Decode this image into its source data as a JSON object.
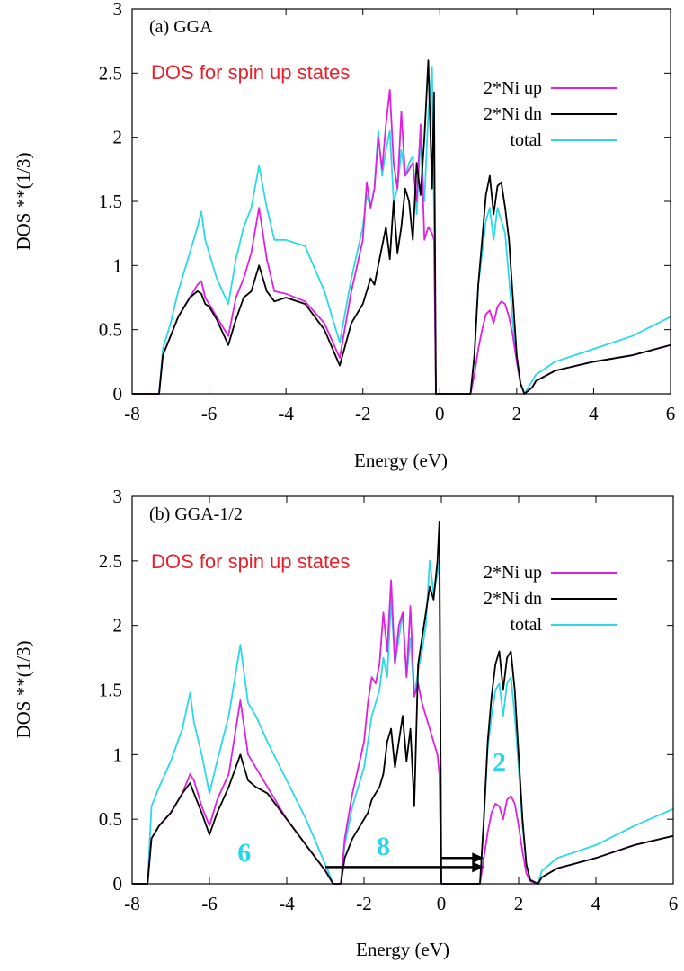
{
  "colors": {
    "ni_up": "#e020e0",
    "ni_dn": "#000000",
    "total": "#2ad8e8",
    "note": "#e8202a",
    "annotation": "#27d6e8"
  },
  "chart_data": [
    {
      "type": "line",
      "panel_label": "(a) GGA",
      "note": "DOS for spin up states",
      "xlabel": "Energy (eV)",
      "ylabel": "DOS **(1/3)",
      "xlim": [
        -8,
        6
      ],
      "ylim": [
        0,
        3
      ],
      "xticks": [
        "-8",
        "-6",
        "-4",
        "-2",
        "0",
        "2",
        "4",
        "6"
      ],
      "yticks": [
        "0",
        "0.5",
        "1",
        "1.5",
        "2",
        "2.5",
        "3"
      ],
      "legend_position": "top-right",
      "legend": [
        "2*Ni up",
        "2*Ni dn",
        "total"
      ],
      "annotations": [],
      "series": [
        {
          "name": "total",
          "x": [
            -8,
            -7.3,
            -7.2,
            -7.0,
            -6.8,
            -6.5,
            -6.3,
            -6.2,
            -6.1,
            -6.0,
            -5.8,
            -5.5,
            -5.3,
            -5.1,
            -4.9,
            -4.7,
            -4.5,
            -4.3,
            -4.0,
            -3.5,
            -3.0,
            -2.6,
            -2.3,
            -2.0,
            -1.9,
            -1.8,
            -1.7,
            -1.6,
            -1.5,
            -1.4,
            -1.3,
            -1.2,
            -1.1,
            -1.0,
            -0.9,
            -0.8,
            -0.7,
            -0.6,
            -0.5,
            -0.4,
            -0.3,
            -0.2,
            -0.15,
            -0.1,
            0,
            0.8,
            0.9,
            1.0,
            1.1,
            1.2,
            1.3,
            1.4,
            1.5,
            1.6,
            1.7,
            1.8,
            1.9,
            2.0,
            2.1,
            2.2,
            2.4,
            2.5,
            3,
            4,
            5,
            6
          ],
          "y": [
            0,
            0,
            0.35,
            0.55,
            0.8,
            1.1,
            1.3,
            1.42,
            1.2,
            1.1,
            0.9,
            0.7,
            1.05,
            1.3,
            1.45,
            1.78,
            1.45,
            1.2,
            1.2,
            1.15,
            0.8,
            0.4,
            0.9,
            1.3,
            1.55,
            1.45,
            1.6,
            2.05,
            1.7,
            1.9,
            2.05,
            1.5,
            1.6,
            1.9,
            1.7,
            1.8,
            1.85,
            1.4,
            2.0,
            1.5,
            2.2,
            2.55,
            1.4,
            0,
            0,
            0,
            0.3,
            0.85,
            1.1,
            1.35,
            1.45,
            1.2,
            1.45,
            1.35,
            1.25,
            0.9,
            0.55,
            0.25,
            0.08,
            0,
            0.1,
            0.15,
            0.25,
            0.35,
            0.45,
            0.6
          ]
        },
        {
          "name": "2*Ni up",
          "x": [
            -8,
            -7.3,
            -7.2,
            -7.0,
            -6.8,
            -6.5,
            -6.3,
            -6.2,
            -6.1,
            -6.0,
            -5.8,
            -5.5,
            -5.3,
            -5.1,
            -4.9,
            -4.7,
            -4.5,
            -4.3,
            -4.0,
            -3.5,
            -3.0,
            -2.6,
            -2.3,
            -2.0,
            -1.9,
            -1.8,
            -1.7,
            -1.6,
            -1.5,
            -1.4,
            -1.3,
            -1.2,
            -1.1,
            -1.0,
            -0.9,
            -0.8,
            -0.7,
            -0.6,
            -0.5,
            -0.4,
            -0.3,
            -0.2,
            -0.15,
            -0.1,
            0,
            0.8,
            0.9,
            1.0,
            1.1,
            1.2,
            1.3,
            1.4,
            1.5,
            1.6,
            1.7,
            1.8,
            1.9,
            2.0,
            2.1,
            2.2,
            2.4,
            2.5,
            3,
            4,
            5,
            6
          ],
          "y": [
            0,
            0,
            0.3,
            0.45,
            0.6,
            0.75,
            0.85,
            0.88,
            0.75,
            0.7,
            0.6,
            0.45,
            0.75,
            0.9,
            1.1,
            1.45,
            1.05,
            0.8,
            0.78,
            0.72,
            0.55,
            0.28,
            0.8,
            1.2,
            1.65,
            1.45,
            1.6,
            2.0,
            1.75,
            2.1,
            2.37,
            1.8,
            1.6,
            2.2,
            1.7,
            1.75,
            1.8,
            1.5,
            2.1,
            1.2,
            1.3,
            1.25,
            1.2,
            0,
            0,
            0,
            0.15,
            0.35,
            0.5,
            0.62,
            0.65,
            0.55,
            0.68,
            0.72,
            0.7,
            0.6,
            0.45,
            0.25,
            0.08,
            0,
            0.05,
            0.1,
            0.18,
            0.25,
            0.3,
            0.38
          ]
        },
        {
          "name": "2*Ni dn",
          "x": [
            -8,
            -7.3,
            -7.2,
            -7.0,
            -6.8,
            -6.5,
            -6.3,
            -6.2,
            -6.1,
            -6.0,
            -5.8,
            -5.5,
            -5.3,
            -5.1,
            -4.9,
            -4.7,
            -4.5,
            -4.3,
            -4.0,
            -3.5,
            -3.0,
            -2.6,
            -2.3,
            -2.0,
            -1.9,
            -1.8,
            -1.7,
            -1.6,
            -1.5,
            -1.4,
            -1.3,
            -1.2,
            -1.1,
            -1.0,
            -0.9,
            -0.8,
            -0.7,
            -0.6,
            -0.5,
            -0.4,
            -0.3,
            -0.2,
            -0.15,
            -0.1,
            0,
            0.8,
            0.9,
            1.0,
            1.1,
            1.2,
            1.3,
            1.4,
            1.5,
            1.6,
            1.7,
            1.8,
            1.9,
            2.0,
            2.1,
            2.2,
            2.4,
            2.5,
            3,
            4,
            5,
            6
          ],
          "y": [
            0,
            0,
            0.3,
            0.45,
            0.6,
            0.75,
            0.8,
            0.78,
            0.7,
            0.68,
            0.58,
            0.38,
            0.58,
            0.75,
            0.8,
            1.0,
            0.8,
            0.72,
            0.75,
            0.7,
            0.5,
            0.22,
            0.55,
            0.7,
            0.8,
            0.9,
            0.85,
            1.0,
            1.15,
            1.3,
            1.05,
            1.5,
            1.1,
            1.3,
            1.6,
            1.5,
            1.2,
            1.8,
            1.55,
            2.0,
            2.6,
            1.6,
            2.35,
            0,
            0,
            0,
            0.3,
            0.85,
            1.2,
            1.55,
            1.7,
            1.4,
            1.62,
            1.65,
            1.45,
            1.2,
            0.75,
            0.3,
            0.08,
            0,
            0.05,
            0.1,
            0.18,
            0.25,
            0.3,
            0.38
          ]
        }
      ]
    },
    {
      "type": "line",
      "panel_label": "(b) GGA-1/2",
      "note": "DOS for spin up states",
      "xlabel": "Energy (eV)",
      "ylabel": "DOS **(1/3)",
      "xlim": [
        -8,
        6
      ],
      "ylim": [
        0,
        3
      ],
      "xticks": [
        "-8",
        "-6",
        "-4",
        "-2",
        "0",
        "2",
        "4",
        "6"
      ],
      "yticks": [
        "0",
        "0.5",
        "1",
        "1.5",
        "2",
        "2.5",
        "3"
      ],
      "legend_position": "top-right",
      "legend": [
        "2*Ni up",
        "2*Ni dn",
        "total"
      ],
      "annotations": [
        {
          "text": "6",
          "x": -5.1,
          "y": 0.25
        },
        {
          "text": "8",
          "x": -1.5,
          "y": 0.3
        },
        {
          "text": "2",
          "x": 1.5,
          "y": 0.95
        }
      ],
      "arrows": [
        {
          "x_from": -3.0,
          "x_to": 1.1,
          "y": 0.13
        },
        {
          "x_from": 0.0,
          "x_to": 1.1,
          "y": 0.2
        }
      ],
      "series": [
        {
          "name": "total",
          "x": [
            -8,
            -7.6,
            -7.5,
            -7.3,
            -7.0,
            -6.7,
            -6.5,
            -6.4,
            -6.2,
            -6.0,
            -5.8,
            -5.5,
            -5.2,
            -5.0,
            -4.8,
            -4.5,
            -4.0,
            -3.5,
            -3.0,
            -2.8,
            -2.6,
            -2.5,
            -2.3,
            -2.0,
            -1.9,
            -1.8,
            -1.7,
            -1.6,
            -1.5,
            -1.4,
            -1.3,
            -1.2,
            -1.1,
            -1.0,
            -0.9,
            -0.8,
            -0.7,
            -0.6,
            -0.5,
            -0.4,
            -0.3,
            -0.2,
            -0.1,
            -0.05,
            0,
            1.0,
            1.1,
            1.2,
            1.3,
            1.4,
            1.5,
            1.6,
            1.7,
            1.8,
            1.9,
            2.0,
            2.1,
            2.2,
            2.3,
            2.5,
            2.6,
            3,
            4,
            5,
            6
          ],
          "y": [
            0,
            0,
            0.6,
            0.75,
            0.95,
            1.2,
            1.48,
            1.25,
            1.0,
            0.7,
            0.95,
            1.3,
            1.85,
            1.4,
            1.3,
            1.1,
            0.8,
            0.5,
            0.15,
            0,
            0,
            0.3,
            0.6,
            0.9,
            1.1,
            1.3,
            1.4,
            1.5,
            1.75,
            1.6,
            2.2,
            1.7,
            1.9,
            2.1,
            1.6,
            1.9,
            1.45,
            1.65,
            1.8,
            2.0,
            2.5,
            2.25,
            2.4,
            2.5,
            0,
            0,
            0.5,
            1.05,
            1.3,
            1.5,
            1.55,
            1.3,
            1.55,
            1.6,
            1.3,
            0.9,
            0.45,
            0.15,
            0.03,
            0,
            0.1,
            0.2,
            0.3,
            0.45,
            0.58
          ]
        },
        {
          "name": "2*Ni up",
          "x": [
            -8,
            -7.6,
            -7.5,
            -7.3,
            -7.0,
            -6.7,
            -6.5,
            -6.4,
            -6.2,
            -6.0,
            -5.8,
            -5.5,
            -5.2,
            -5.0,
            -4.8,
            -4.5,
            -4.0,
            -3.5,
            -3.0,
            -2.8,
            -2.6,
            -2.5,
            -2.3,
            -2.0,
            -1.9,
            -1.8,
            -1.7,
            -1.6,
            -1.5,
            -1.4,
            -1.3,
            -1.2,
            -1.1,
            -1.0,
            -0.9,
            -0.8,
            -0.7,
            -0.6,
            -0.5,
            -0.4,
            -0.3,
            -0.2,
            -0.1,
            -0.05,
            0,
            1.0,
            1.1,
            1.2,
            1.3,
            1.4,
            1.5,
            1.6,
            1.7,
            1.8,
            1.9,
            2.0,
            2.1,
            2.2,
            2.3,
            2.5,
            2.6,
            3,
            4,
            5,
            6
          ],
          "y": [
            0,
            0,
            0.35,
            0.45,
            0.55,
            0.7,
            0.85,
            0.8,
            0.6,
            0.45,
            0.65,
            0.85,
            1.42,
            1.0,
            0.9,
            0.75,
            0.5,
            0.3,
            0.1,
            0,
            0,
            0.35,
            0.7,
            1.1,
            1.4,
            1.6,
            1.55,
            1.7,
            2.1,
            1.8,
            2.35,
            1.7,
            2.0,
            2.1,
            1.6,
            2.15,
            1.45,
            1.55,
            1.4,
            1.3,
            1.2,
            1.1,
            1.0,
            0.85,
            0,
            0,
            0.2,
            0.4,
            0.55,
            0.62,
            0.6,
            0.5,
            0.65,
            0.68,
            0.62,
            0.45,
            0.25,
            0.08,
            0.02,
            0,
            0.05,
            0.12,
            0.2,
            0.3,
            0.37
          ]
        },
        {
          "name": "2*Ni dn",
          "x": [
            -8,
            -7.6,
            -7.5,
            -7.3,
            -7.0,
            -6.7,
            -6.5,
            -6.4,
            -6.2,
            -6.0,
            -5.8,
            -5.5,
            -5.2,
            -5.0,
            -4.8,
            -4.5,
            -4.0,
            -3.5,
            -3.0,
            -2.8,
            -2.6,
            -2.5,
            -2.3,
            -2.0,
            -1.9,
            -1.8,
            -1.7,
            -1.6,
            -1.5,
            -1.4,
            -1.3,
            -1.2,
            -1.1,
            -1.0,
            -0.9,
            -0.8,
            -0.7,
            -0.6,
            -0.5,
            -0.4,
            -0.3,
            -0.2,
            -0.1,
            -0.05,
            0,
            1.0,
            1.1,
            1.2,
            1.3,
            1.4,
            1.5,
            1.6,
            1.7,
            1.8,
            1.9,
            2.0,
            2.1,
            2.2,
            2.3,
            2.5,
            2.6,
            3,
            4,
            5,
            6
          ],
          "y": [
            0,
            0,
            0.35,
            0.45,
            0.55,
            0.7,
            0.78,
            0.7,
            0.55,
            0.38,
            0.55,
            0.75,
            1.0,
            0.8,
            0.75,
            0.7,
            0.5,
            0.3,
            0.1,
            0,
            0,
            0.2,
            0.35,
            0.5,
            0.55,
            0.65,
            0.7,
            0.75,
            0.85,
            1.1,
            1.2,
            0.9,
            1.1,
            1.3,
            0.95,
            1.2,
            0.6,
            1.7,
            1.9,
            2.1,
            2.3,
            2.2,
            2.5,
            2.8,
            0,
            0,
            0.5,
            1.1,
            1.45,
            1.7,
            1.8,
            1.5,
            1.75,
            1.8,
            1.5,
            1.0,
            0.5,
            0.15,
            0.03,
            0,
            0.05,
            0.12,
            0.2,
            0.3,
            0.37
          ]
        }
      ]
    }
  ]
}
